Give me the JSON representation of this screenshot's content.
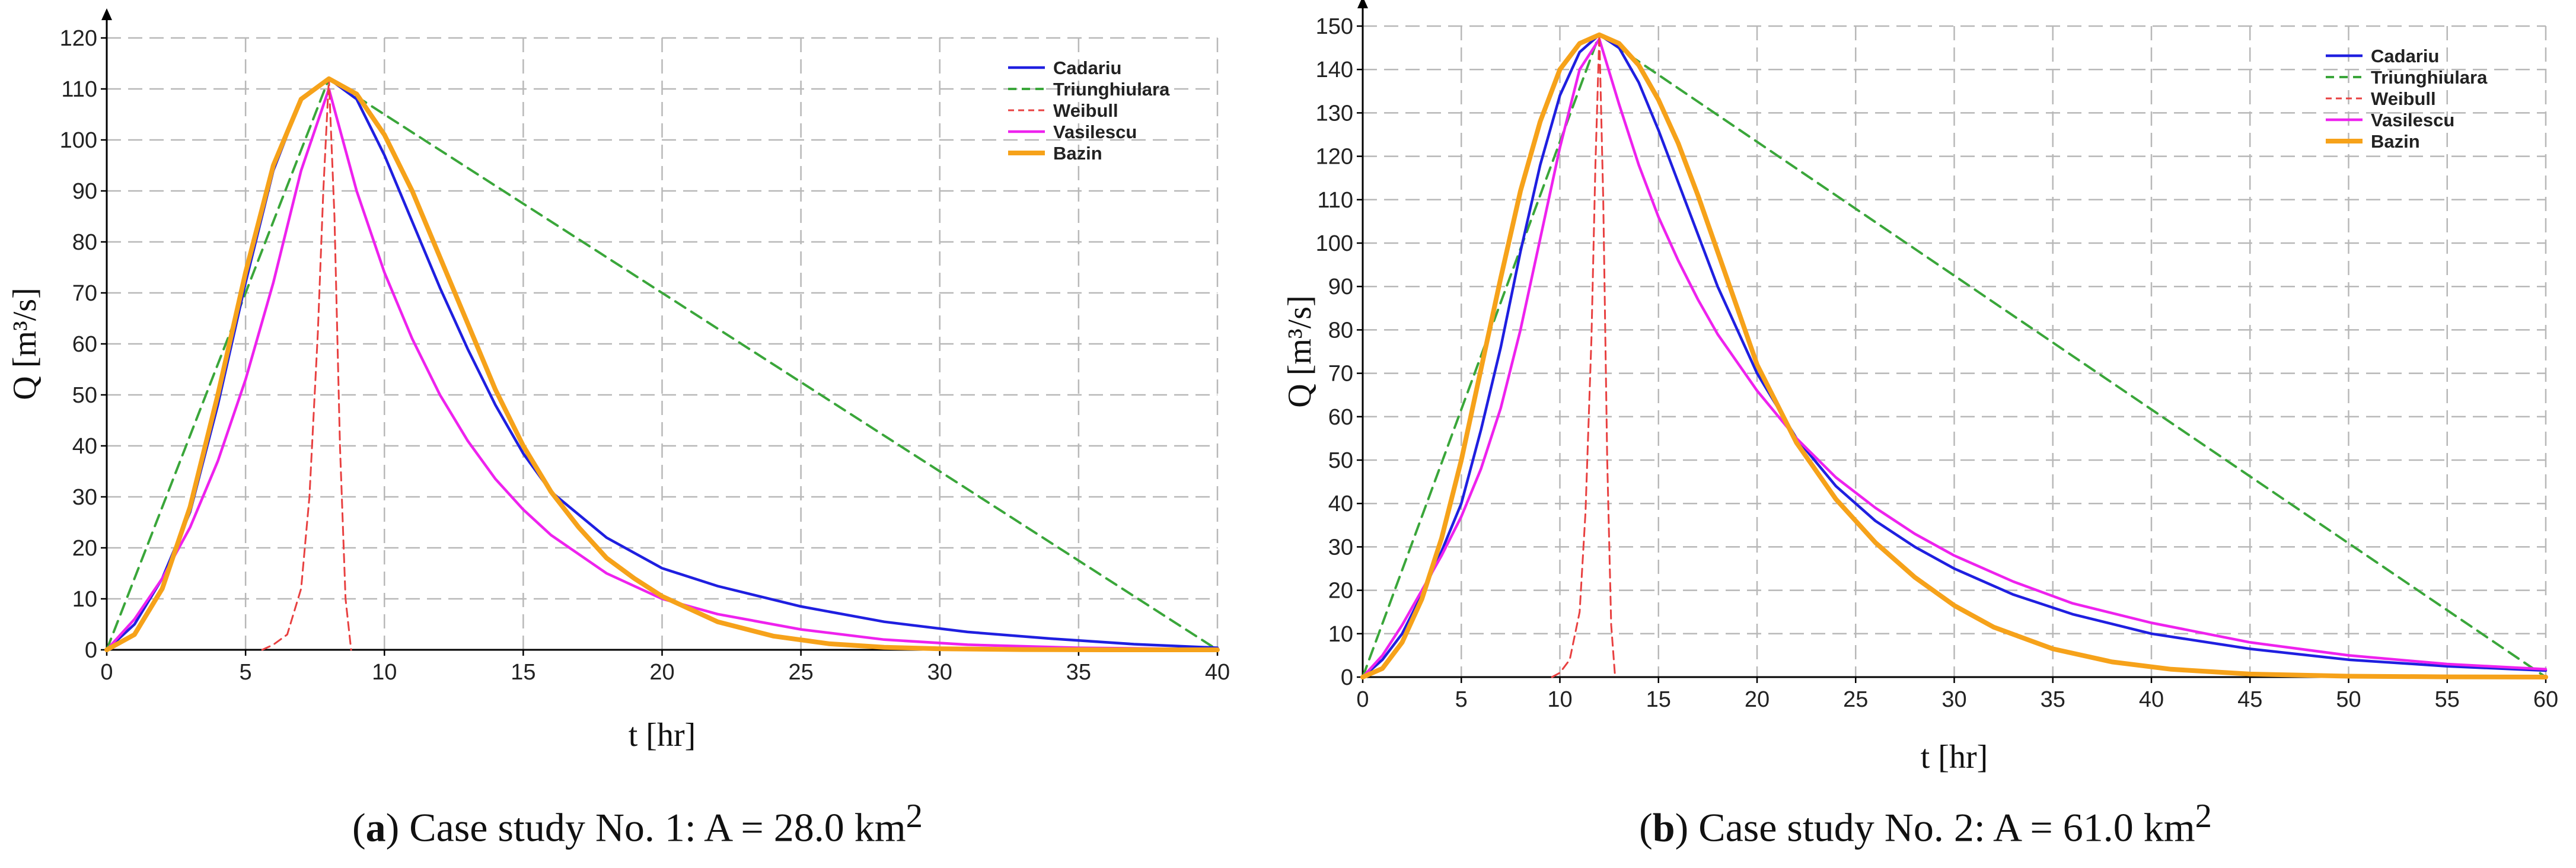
{
  "chart_data": [
    {
      "type": "line",
      "panel_label": "a",
      "caption_text": ") Case study No. 1: A = 28.0 km",
      "caption_sup": "2",
      "xlabel": "t [hr]",
      "ylabel": "Q [m³/s]",
      "xlim": [
        0,
        40
      ],
      "ylim": [
        0,
        120
      ],
      "x_ticks": [
        0,
        5,
        10,
        15,
        20,
        25,
        30,
        35,
        40
      ],
      "y_ticks": [
        0,
        10,
        20,
        30,
        40,
        50,
        60,
        70,
        80,
        90,
        100,
        110,
        120
      ],
      "grid": true,
      "legend_position": "top-right",
      "series": [
        {
          "name": "Cadariu",
          "color": "#1f1fe0",
          "style": "solid",
          "x": [
            0,
            1,
            2,
            3,
            4,
            5,
            6,
            7,
            8,
            9,
            10,
            11,
            12,
            13,
            14,
            15,
            16,
            18,
            20,
            22,
            25,
            28,
            31,
            34,
            37,
            40
          ],
          "y": [
            0,
            5,
            14,
            27,
            48,
            72,
            94,
            108,
            112,
            108,
            97,
            84,
            71,
            59,
            48,
            38.5,
            31,
            22,
            16,
            12.5,
            8.5,
            5.5,
            3.5,
            2.2,
            1.1,
            0.4
          ]
        },
        {
          "name": "Triunghiulara",
          "color": "#3aa63a",
          "style": "dashed",
          "x": [
            0,
            8,
            40
          ],
          "y": [
            0,
            112,
            0
          ]
        },
        {
          "name": "Weibull",
          "color": "#e84040",
          "style": "dashed-thin",
          "x": [
            5.6,
            6,
            6.5,
            7,
            7.3,
            7.6,
            7.8,
            8,
            8.2,
            8.4,
            8.6,
            8.8
          ],
          "y": [
            0,
            1,
            3,
            12,
            30,
            62,
            90,
            112,
            85,
            40,
            10,
            0
          ]
        },
        {
          "name": "Vasilescu",
          "color": "#ee22ee",
          "style": "solid",
          "x": [
            0,
            1,
            2,
            3,
            4,
            5,
            6,
            7,
            8,
            9,
            10,
            11,
            12,
            13,
            14,
            15,
            16,
            18,
            20,
            22,
            25,
            28,
            31,
            35,
            40
          ],
          "y": [
            0,
            6,
            14,
            24,
            37,
            53,
            72,
            94,
            110,
            90,
            74,
            61,
            50,
            41,
            33.5,
            27.5,
            22.5,
            15,
            10,
            7,
            4,
            2,
            1,
            0.4,
            0.1
          ]
        },
        {
          "name": "Bazin",
          "color": "#f6a21a",
          "style": "thick",
          "x": [
            0,
            1,
            2,
            3,
            4,
            5,
            6,
            7,
            8,
            9,
            10,
            11,
            12,
            13,
            14,
            15,
            16,
            17,
            18,
            19,
            20,
            22,
            24,
            26,
            28,
            30,
            33,
            36,
            40
          ],
          "y": [
            0,
            3,
            12,
            28,
            50,
            74,
            95,
            108,
            112,
            109,
            101,
            90,
            77,
            64,
            51,
            40,
            31,
            24,
            18,
            14,
            10.5,
            5.5,
            2.7,
            1.2,
            0.5,
            0.2,
            0.05,
            0,
            0
          ]
        }
      ]
    },
    {
      "type": "line",
      "panel_label": "b",
      "caption_text": ") Case study No. 2: A = 61.0 km",
      "caption_sup": "2",
      "xlabel": "t [hr]",
      "ylabel": "Q [m³/s]",
      "xlim": [
        0,
        60
      ],
      "ylim": [
        0,
        150
      ],
      "x_ticks": [
        0,
        5,
        10,
        15,
        20,
        25,
        30,
        35,
        40,
        45,
        50,
        55,
        60
      ],
      "y_ticks": [
        0,
        10,
        20,
        30,
        40,
        50,
        60,
        70,
        80,
        90,
        100,
        110,
        120,
        130,
        140,
        150
      ],
      "grid": true,
      "legend_position": "top-right",
      "series": [
        {
          "name": "Cadariu",
          "color": "#1f1fe0",
          "style": "solid",
          "x": [
            0,
            1,
            2,
            3,
            4,
            5,
            6,
            7,
            8,
            9,
            10,
            11,
            12,
            13,
            14,
            15,
            16,
            17,
            18,
            20,
            22,
            24,
            26,
            28,
            30,
            33,
            36,
            40,
            45,
            50,
            55,
            60
          ],
          "y": [
            0,
            4,
            10,
            19,
            29,
            40,
            57,
            76,
            98,
            118,
            134,
            144,
            148,
            145,
            137,
            126,
            114,
            102,
            90,
            70,
            55,
            44,
            36,
            30,
            25,
            19,
            14.5,
            10,
            6.5,
            4,
            2.5,
            1.5
          ]
        },
        {
          "name": "Triunghiulara",
          "color": "#3aa63a",
          "style": "dashed",
          "x": [
            0,
            12,
            60
          ],
          "y": [
            0,
            148,
            0
          ]
        },
        {
          "name": "Weibull",
          "color": "#e84040",
          "style": "dashed-thin",
          "x": [
            9.6,
            10,
            10.5,
            11,
            11.3,
            11.6,
            11.8,
            12,
            12.2,
            12.4,
            12.6,
            12.8
          ],
          "y": [
            0,
            1,
            4,
            15,
            38,
            78,
            118,
            148,
            110,
            50,
            12,
            0
          ]
        },
        {
          "name": "Vasilescu",
          "color": "#ee22ee",
          "style": "solid",
          "x": [
            0,
            1,
            2,
            3,
            4,
            5,
            6,
            7,
            8,
            9,
            10,
            11,
            12,
            13,
            14,
            15,
            16,
            17,
            18,
            20,
            22,
            24,
            26,
            28,
            30,
            33,
            36,
            40,
            45,
            50,
            55,
            60
          ],
          "y": [
            0,
            5,
            12,
            20,
            28,
            37,
            48,
            62,
            80,
            101,
            122,
            140,
            147,
            132,
            118,
            106,
            96,
            87,
            79,
            66,
            55,
            46,
            39,
            33,
            28,
            22,
            17,
            12.5,
            8,
            5,
            3,
            1.8
          ]
        },
        {
          "name": "Bazin",
          "color": "#f6a21a",
          "style": "thick",
          "x": [
            0,
            1,
            2,
            3,
            4,
            5,
            6,
            7,
            8,
            9,
            10,
            11,
            12,
            13,
            14,
            15,
            16,
            17,
            18,
            19,
            20,
            22,
            24,
            26,
            28,
            30,
            32,
            35,
            38,
            41,
            45,
            50,
            55,
            60
          ],
          "y": [
            0,
            2,
            8,
            18,
            32,
            50,
            71,
            92,
            112,
            128,
            140,
            146,
            148,
            146,
            141,
            133,
            123,
            111,
            98,
            85,
            72,
            54,
            41,
            31,
            23,
            16.5,
            11.5,
            6.5,
            3.5,
            1.8,
            0.7,
            0.2,
            0.05,
            0
          ]
        }
      ]
    }
  ]
}
